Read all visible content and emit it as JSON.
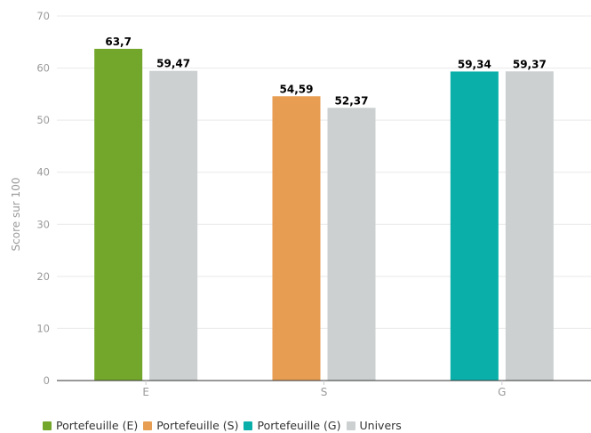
{
  "chart_data": {
    "type": "bar",
    "categories": [
      "E",
      "S",
      "G"
    ],
    "ylabel": "Score sur 100",
    "ylim": [
      0,
      70
    ],
    "yticks": [
      0,
      10,
      20,
      30,
      40,
      50,
      60,
      70
    ],
    "grid": true,
    "legend_position": "bottom-left",
    "series": [
      {
        "name": "Portefeuille",
        "values": [
          63.7,
          54.59,
          59.34
        ],
        "labels": [
          "63,7",
          "54,59",
          "59,34"
        ],
        "colors": [
          "#73a72b",
          "#e79e52",
          "#0aafa9"
        ]
      },
      {
        "name": "Univers",
        "values": [
          59.47,
          52.37,
          59.37
        ],
        "labels": [
          "59,47",
          "52,37",
          "59,37"
        ],
        "colors": [
          "#ccd0d1",
          "#ccd0d1",
          "#ccd0d1"
        ]
      }
    ],
    "legend": [
      {
        "label": "Portefeuille (E)",
        "color": "#73a72b"
      },
      {
        "label": "Portefeuille (S)",
        "color": "#e79e52"
      },
      {
        "label": "Portefeuille (G)",
        "color": "#0aafa9"
      },
      {
        "label": "Univers",
        "color": "#ccd0d1"
      }
    ]
  }
}
